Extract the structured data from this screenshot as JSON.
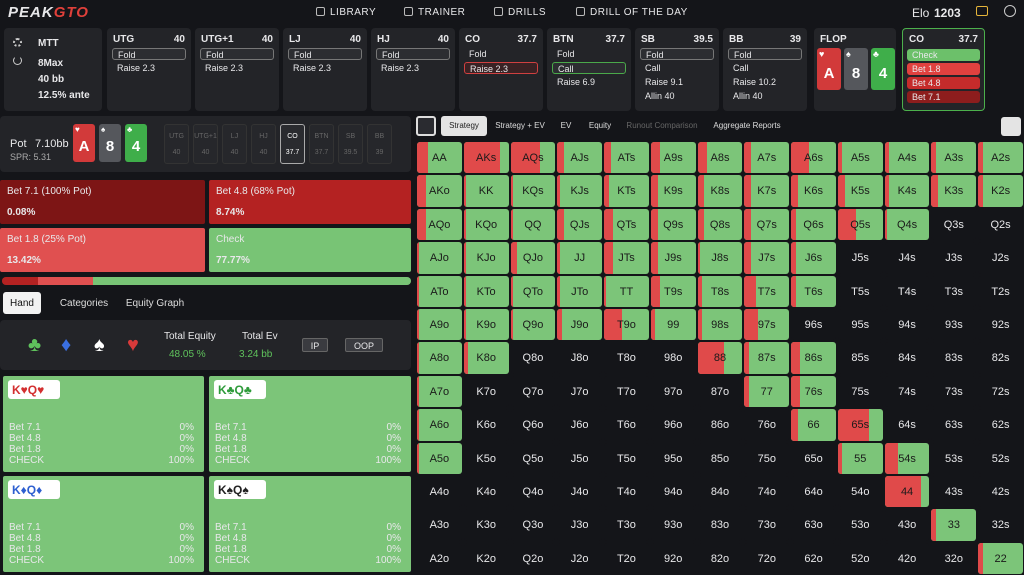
{
  "nav": {
    "logo_a": "PEAK",
    "logo_b": "GTO",
    "items": [
      "LIBRARY",
      "TRAINER",
      "DRILLS",
      "DRILL OF THE DAY"
    ],
    "elo_label": "Elo",
    "elo": 1203
  },
  "game": {
    "format": "MTT",
    "table": "8Max",
    "stack": "40 bb",
    "ante": "12.5% ante"
  },
  "positions": [
    {
      "name": "UTG",
      "stack": 40,
      "actions": [
        "Fold",
        "Raise 2.3"
      ],
      "selected": 0
    },
    {
      "name": "UTG+1",
      "stack": 40,
      "actions": [
        "Fold",
        "Raise 2.3"
      ],
      "selected": 0
    },
    {
      "name": "LJ",
      "stack": 40,
      "actions": [
        "Fold",
        "Raise 2.3"
      ],
      "selected": 0
    },
    {
      "name": "HJ",
      "stack": 40,
      "actions": [
        "Fold",
        "Raise 2.3"
      ],
      "selected": 0
    },
    {
      "name": "CO",
      "stack": 37.7,
      "actions": [
        "Fold",
        "Raise 2.3"
      ],
      "selected": 1
    },
    {
      "name": "BTN",
      "stack": 37.7,
      "actions": [
        "Fold",
        "Call",
        "Raise 6.9"
      ],
      "selected": 1
    },
    {
      "name": "SB",
      "stack": 39.5,
      "actions": [
        "Fold",
        "Call",
        "Raise 9.1",
        "Allin 40"
      ],
      "selected": 0
    },
    {
      "name": "BB",
      "stack": 39,
      "actions": [
        "Fold",
        "Call",
        "Raise 10.2",
        "Allin 40"
      ],
      "selected": 0
    }
  ],
  "flop": {
    "label": "FLOP",
    "cards": [
      {
        "rank": "A",
        "suit": "♥",
        "color": "#d23a3a"
      },
      {
        "rank": "8",
        "suit": "♠",
        "color": "#55575c"
      },
      {
        "rank": "4",
        "suit": "♣",
        "color": "#3fae4a"
      }
    ]
  },
  "current": {
    "name": "CO",
    "stack": 37.7,
    "actions": [
      {
        "name": "Check",
        "color": "#6cc06a"
      },
      {
        "name": "Bet 1.8",
        "color": "#e0413f"
      },
      {
        "name": "Bet 4.8",
        "color": "#c52b2b"
      },
      {
        "name": "Bet 7.1",
        "color": "#8d1d1d"
      }
    ]
  },
  "pot": {
    "label": "Pot",
    "value": "7.10bb",
    "spr": "SPR: 5.31",
    "seats": [
      {
        "name": "UTG",
        "stack": 40
      },
      {
        "name": "UTG+1",
        "stack": 40
      },
      {
        "name": "LJ",
        "stack": 40
      },
      {
        "name": "HJ",
        "stack": 40
      },
      {
        "name": "CO",
        "stack": 37.7
      },
      {
        "name": "BTN",
        "stack": 37.7
      },
      {
        "name": "SB",
        "stack": 39.5
      },
      {
        "name": "BB",
        "stack": 39
      }
    ],
    "active_seat": 4
  },
  "strategy": [
    {
      "name": "Bet 7.1 (100% Pot)",
      "value": {
        "value": 0.08,
        "label": "0.08%"
      },
      "color": "#7d1515"
    },
    {
      "name": "Bet 4.8 (68% Pot)",
      "value": {
        "value": 8.74,
        "label": "8.74%"
      },
      "color": "#b42222"
    },
    {
      "name": "Bet 1.8 (25% Pot)",
      "value": {
        "value": 13.42,
        "label": "13.42%"
      },
      "color": "#e05050"
    },
    {
      "name": "Check",
      "value": {
        "value": 77.77,
        "label": "77.77%"
      },
      "color": "#78c475"
    }
  ],
  "tabs": [
    "Hand",
    "Categories",
    "Equity Graph"
  ],
  "equity": {
    "suits": [
      {
        "s": "♣",
        "color": "#5fc25c"
      },
      {
        "s": "♦",
        "color": "#3a6fe0"
      },
      {
        "s": "♠",
        "color": "#ffffff"
      },
      {
        "s": "♥",
        "color": "#d83a3a"
      }
    ],
    "total_equity_label": "Total Equity",
    "total_equity": "48.05 %",
    "total_ev_label": "Total Ev",
    "total_ev": "3.24 bb",
    "ip": "IP",
    "oop": "OOP"
  },
  "hands": [
    {
      "r1": "K",
      "r2": "Q",
      "suit": "♥",
      "color": "#d32f2f",
      "rows": [
        [
          "Bet 7.1",
          "0%"
        ],
        [
          "Bet 4.8",
          "0%"
        ],
        [
          "Bet 1.8",
          "0%"
        ],
        [
          "CHECK",
          "100%"
        ]
      ]
    },
    {
      "r1": "K",
      "r2": "Q",
      "suit": "♣",
      "color": "#2e9b3a",
      "rows": [
        [
          "Bet 7.1",
          "0%"
        ],
        [
          "Bet 4.8",
          "0%"
        ],
        [
          "Bet 1.8",
          "0%"
        ],
        [
          "CHECK",
          "100%"
        ]
      ]
    },
    {
      "r1": "K",
      "r2": "Q",
      "suit": "♦",
      "color": "#2d5fd0",
      "rows": [
        [
          "Bet 7.1",
          "0%"
        ],
        [
          "Bet 4.8",
          "0%"
        ],
        [
          "Bet 1.8",
          "0%"
        ],
        [
          "CHECK",
          "100%"
        ]
      ]
    },
    {
      "r1": "K",
      "r2": "Q",
      "suit": "♠",
      "color": "#222222",
      "rows": [
        [
          "Bet 7.1",
          "0%"
        ],
        [
          "Bet 4.8",
          "0%"
        ],
        [
          "Bet 1.8",
          "0%"
        ],
        [
          "CHECK",
          "100%"
        ]
      ]
    }
  ],
  "views": [
    "Strategy",
    "Strategy + EV",
    "EV",
    "Equity",
    "Runout Comparison",
    "Aggregate Reports"
  ],
  "range": {
    "rows": [
      [
        "AA",
        "AKs",
        "AQs",
        "AJs",
        "ATs",
        "A9s",
        "A8s",
        "A7s",
        "A6s",
        "A5s",
        "A4s",
        "A3s",
        "A2s"
      ],
      [
        "AKo",
        "KK",
        "KQs",
        "KJs",
        "KTs",
        "K9s",
        "K8s",
        "K7s",
        "K6s",
        "K5s",
        "K4s",
        "K3s",
        "K2s"
      ],
      [
        "AQo",
        "KQo",
        "QQ",
        "QJs",
        "QTs",
        "Q9s",
        "Q8s",
        "Q7s",
        "Q6s",
        "Q5s",
        "Q4s",
        "Q3s",
        "Q2s"
      ],
      [
        "AJo",
        "KJo",
        "QJo",
        "JJ",
        "JTs",
        "J9s",
        "J8s",
        "J7s",
        "J6s",
        "J5s",
        "J4s",
        "J3s",
        "J2s"
      ],
      [
        "ATo",
        "KTo",
        "QTo",
        "JTo",
        "TT",
        "T9s",
        "T8s",
        "T7s",
        "T6s",
        "T5s",
        "T4s",
        "T3s",
        "T2s"
      ],
      [
        "A9o",
        "K9o",
        "Q9o",
        "J9o",
        "T9o",
        "99",
        "98s",
        "97s",
        "96s",
        "95s",
        "94s",
        "93s",
        "92s"
      ],
      [
        "A8o",
        "K8o",
        "Q8o",
        "J8o",
        "T8o",
        "98o",
        "88",
        "87s",
        "86s",
        "85s",
        "84s",
        "83s",
        "82s"
      ],
      [
        "A7o",
        "K7o",
        "Q7o",
        "J7o",
        "T7o",
        "97o",
        "87o",
        "77",
        "76s",
        "75s",
        "74s",
        "73s",
        "72s"
      ],
      [
        "A6o",
        "K6o",
        "Q6o",
        "J6o",
        "T6o",
        "96o",
        "86o",
        "76o",
        "66",
        "65s",
        "64s",
        "63s",
        "62s"
      ],
      [
        "A5o",
        "K5o",
        "Q5o",
        "J5o",
        "T5o",
        "95o",
        "85o",
        "75o",
        "65o",
        "55",
        "54s",
        "53s",
        "52s"
      ],
      [
        "A4o",
        "K4o",
        "Q4o",
        "J4o",
        "T4o",
        "94o",
        "84o",
        "74o",
        "64o",
        "54o",
        "44",
        "43s",
        "42s"
      ],
      [
        "A3o",
        "K3o",
        "Q3o",
        "J3o",
        "T3o",
        "93o",
        "83o",
        "73o",
        "63o",
        "53o",
        "43o",
        "33",
        "32s"
      ],
      [
        "A2o",
        "K2o",
        "Q2o",
        "J2o",
        "T2o",
        "92o",
        "82o",
        "72o",
        "62o",
        "52o",
        "42o",
        "32o",
        "22"
      ]
    ],
    "bet": [
      [
        25,
        80,
        65,
        15,
        15,
        20,
        20,
        15,
        40,
        10,
        10,
        10,
        10
      ],
      [
        20,
        5,
        5,
        5,
        10,
        15,
        15,
        15,
        15,
        15,
        10,
        15,
        10
      ],
      [
        20,
        5,
        5,
        15,
        20,
        15,
        15,
        15,
        10,
        40,
        5,
        null,
        null
      ],
      [
        5,
        5,
        15,
        5,
        20,
        15,
        5,
        15,
        10,
        null,
        null,
        null,
        null
      ],
      [
        5,
        5,
        5,
        5,
        5,
        20,
        10,
        25,
        10,
        null,
        null,
        null,
        null
      ],
      [
        5,
        5,
        5,
        10,
        40,
        10,
        10,
        30,
        null,
        null,
        null,
        null,
        null
      ],
      [
        5,
        10,
        null,
        null,
        null,
        null,
        60,
        10,
        20,
        null,
        null,
        null,
        null
      ],
      [
        5,
        null,
        null,
        null,
        null,
        null,
        null,
        10,
        20,
        null,
        null,
        null,
        null
      ],
      [
        5,
        null,
        null,
        null,
        null,
        null,
        null,
        null,
        15,
        70,
        null,
        null,
        null
      ],
      [
        5,
        null,
        null,
        null,
        null,
        null,
        null,
        null,
        null,
        10,
        30,
        null,
        null
      ],
      [
        null,
        null,
        null,
        null,
        null,
        null,
        null,
        null,
        null,
        null,
        80,
        null,
        null
      ],
      [
        null,
        null,
        null,
        null,
        null,
        null,
        null,
        null,
        null,
        null,
        null,
        10,
        null
      ],
      [
        null,
        null,
        null,
        null,
        null,
        null,
        null,
        null,
        null,
        null,
        null,
        null,
        10
      ]
    ],
    "bet_color": "#e04a4a",
    "check_color": "#7cc579"
  }
}
